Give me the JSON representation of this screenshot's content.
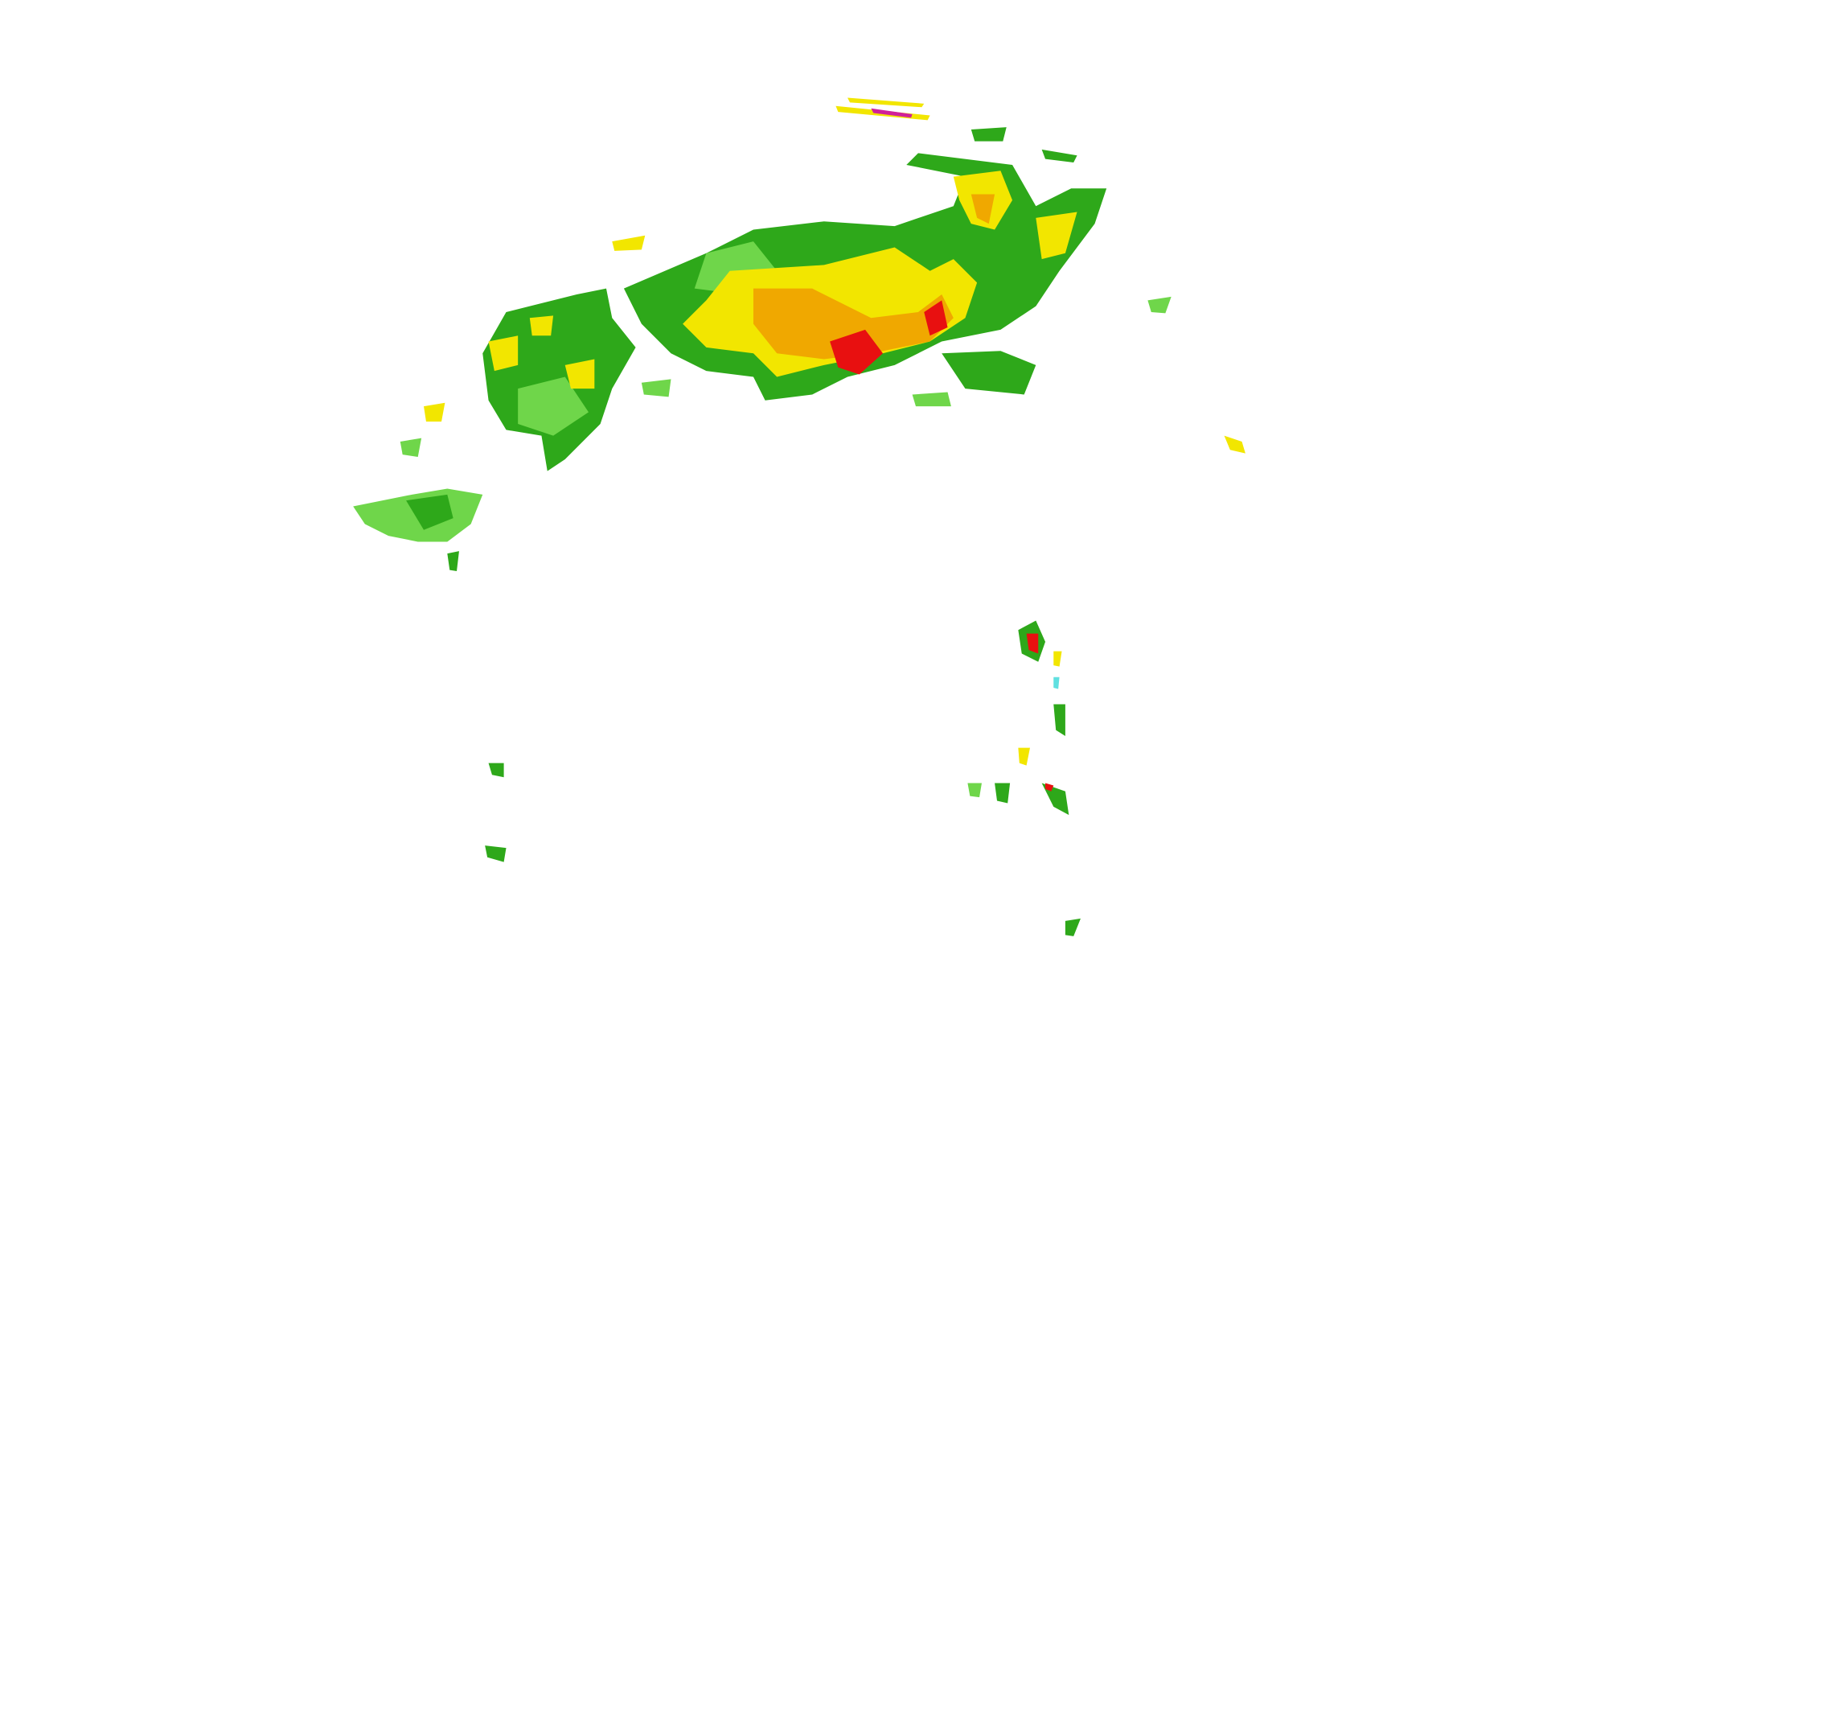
{
  "radar": {
    "palette": {
      "light_green": "#6fd64a",
      "green": "#2ea81a",
      "dark_green": "#1f8f10",
      "yellow": "#f2e600",
      "orange": "#f0a800",
      "red": "#e81010",
      "magenta": "#d0209a",
      "cyan": "#60e0e0"
    }
  }
}
